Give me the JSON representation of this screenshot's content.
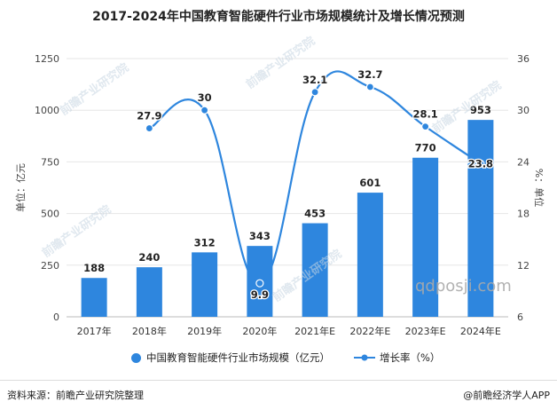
{
  "chart_data": {
    "type": "bar+line",
    "title": "2017-2024年中国教育智能硬件行业市场规模统计及增长情况预测",
    "categories": [
      "2017年",
      "2018年",
      "2019年",
      "2020年",
      "2021年E",
      "2022年E",
      "2023年E",
      "2024年E"
    ],
    "series": [
      {
        "name": "中国教育智能硬件行业市场规模（亿元）",
        "type": "bar",
        "axis": "left",
        "values": [
          188,
          240,
          312,
          343,
          453,
          601,
          770,
          953
        ]
      },
      {
        "name": "增长率（%）",
        "type": "line",
        "axis": "right",
        "values": [
          null,
          27.9,
          30,
          9.9,
          32.1,
          32.7,
          28.1,
          23.8
        ]
      }
    ],
    "y_left": {
      "label": "单位：亿元",
      "lim": [
        0,
        1250
      ],
      "ticks": [
        0,
        250,
        500,
        750,
        1000,
        1250
      ]
    },
    "y_right": {
      "label": "%：单位",
      "lim": [
        6,
        36
      ],
      "ticks": [
        6,
        12,
        18,
        24,
        30,
        36
      ]
    },
    "grid": true,
    "legend": "bottom",
    "colors": {
      "bar": "#2e86de",
      "line": "#2e86de",
      "grid": "#e6e6e6"
    }
  },
  "footer": {
    "source": "资料来源：前瞻产业研究院整理",
    "brand": "@前瞻经济学人APP"
  },
  "watermarks": [
    "前瞻产业研究院",
    "qdposji.com"
  ]
}
